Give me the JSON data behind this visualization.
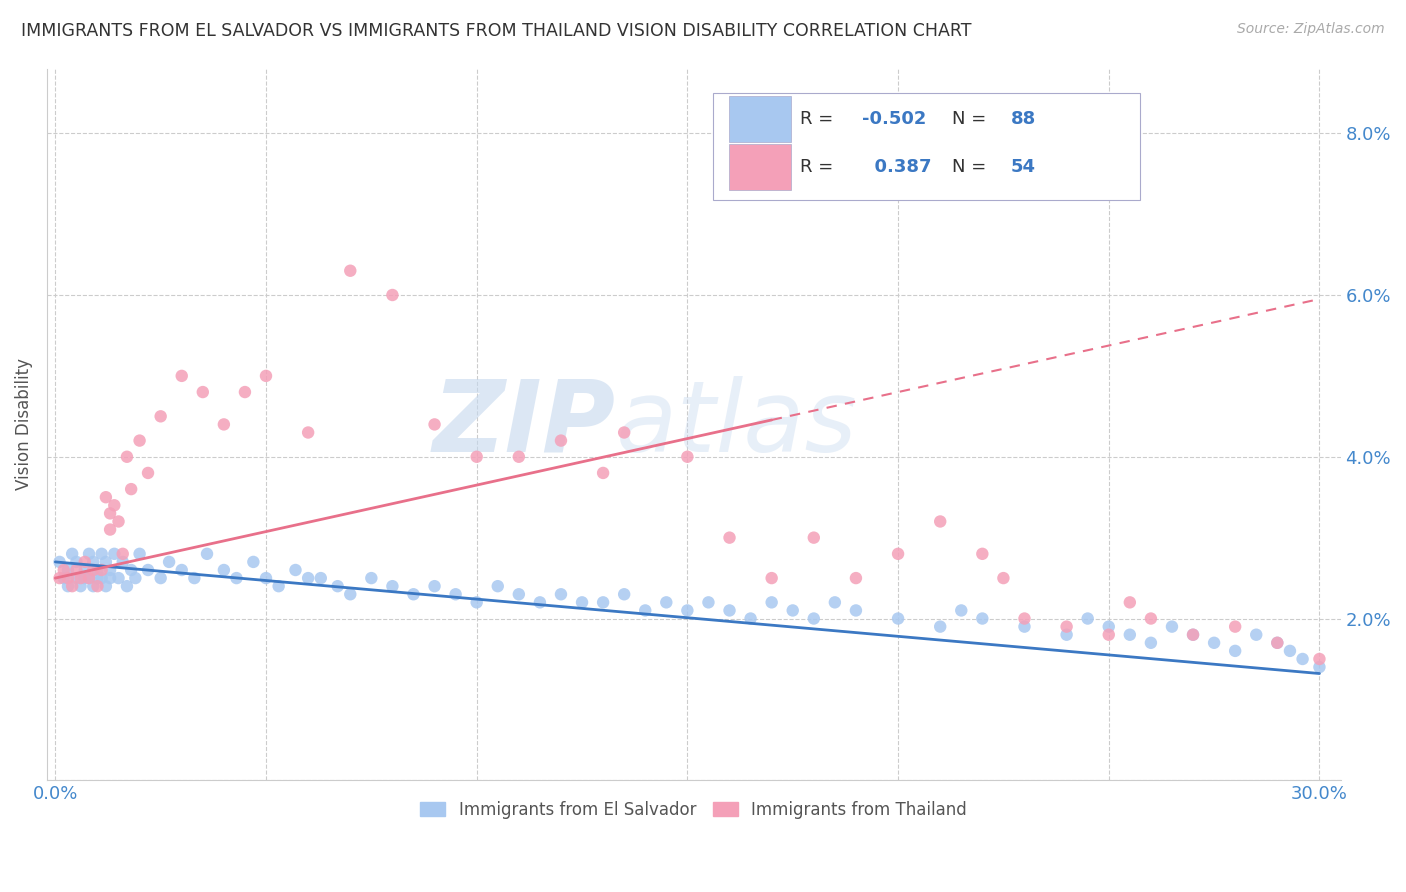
{
  "title": "IMMIGRANTS FROM EL SALVADOR VS IMMIGRANTS FROM THAILAND VISION DISABILITY CORRELATION CHART",
  "source": "Source: ZipAtlas.com",
  "ylabel": "Vision Disability",
  "x_ticks": [
    0.0,
    0.05,
    0.1,
    0.15,
    0.2,
    0.25,
    0.3
  ],
  "x_tick_labels": [
    "0.0%",
    "",
    "",
    "",
    "",
    "",
    "30.0%"
  ],
  "y_ticks": [
    0.0,
    0.02,
    0.04,
    0.06,
    0.08
  ],
  "y_tick_labels": [
    "",
    "2.0%",
    "4.0%",
    "6.0%",
    "8.0%"
  ],
  "xlim": [
    -0.002,
    0.305
  ],
  "ylim": [
    0.0,
    0.088
  ],
  "legend_labels": [
    "Immigrants from El Salvador",
    "Immigrants from Thailand"
  ],
  "el_salvador_color": "#a8c8f0",
  "thailand_color": "#f4a0b8",
  "el_salvador_line_color": "#3b78c3",
  "thailand_line_color": "#e8708a",
  "watermark_zip": "ZIP",
  "watermark_atlas": "atlas",
  "el_salvador_x": [
    0.001,
    0.002,
    0.003,
    0.003,
    0.004,
    0.005,
    0.005,
    0.006,
    0.007,
    0.007,
    0.008,
    0.008,
    0.009,
    0.009,
    0.01,
    0.01,
    0.011,
    0.011,
    0.012,
    0.012,
    0.013,
    0.013,
    0.014,
    0.015,
    0.016,
    0.017,
    0.018,
    0.019,
    0.02,
    0.022,
    0.025,
    0.027,
    0.03,
    0.033,
    0.036,
    0.04,
    0.043,
    0.047,
    0.05,
    0.053,
    0.057,
    0.06,
    0.063,
    0.067,
    0.07,
    0.075,
    0.08,
    0.085,
    0.09,
    0.095,
    0.1,
    0.105,
    0.11,
    0.115,
    0.12,
    0.125,
    0.13,
    0.135,
    0.14,
    0.145,
    0.15,
    0.155,
    0.16,
    0.165,
    0.17,
    0.175,
    0.18,
    0.185,
    0.19,
    0.2,
    0.21,
    0.215,
    0.22,
    0.23,
    0.24,
    0.245,
    0.25,
    0.255,
    0.26,
    0.265,
    0.27,
    0.275,
    0.28,
    0.285,
    0.29,
    0.293,
    0.296,
    0.3
  ],
  "el_salvador_y": [
    0.027,
    0.025,
    0.026,
    0.024,
    0.028,
    0.025,
    0.027,
    0.024,
    0.026,
    0.025,
    0.028,
    0.025,
    0.027,
    0.024,
    0.026,
    0.025,
    0.028,
    0.025,
    0.027,
    0.024,
    0.026,
    0.025,
    0.028,
    0.025,
    0.027,
    0.024,
    0.026,
    0.025,
    0.028,
    0.026,
    0.025,
    0.027,
    0.026,
    0.025,
    0.028,
    0.026,
    0.025,
    0.027,
    0.025,
    0.024,
    0.026,
    0.025,
    0.025,
    0.024,
    0.023,
    0.025,
    0.024,
    0.023,
    0.024,
    0.023,
    0.022,
    0.024,
    0.023,
    0.022,
    0.023,
    0.022,
    0.022,
    0.023,
    0.021,
    0.022,
    0.021,
    0.022,
    0.021,
    0.02,
    0.022,
    0.021,
    0.02,
    0.022,
    0.021,
    0.02,
    0.019,
    0.021,
    0.02,
    0.019,
    0.018,
    0.02,
    0.019,
    0.018,
    0.017,
    0.019,
    0.018,
    0.017,
    0.016,
    0.018,
    0.017,
    0.016,
    0.015,
    0.014
  ],
  "thailand_x": [
    0.001,
    0.002,
    0.003,
    0.004,
    0.005,
    0.006,
    0.007,
    0.008,
    0.009,
    0.01,
    0.011,
    0.012,
    0.013,
    0.013,
    0.014,
    0.015,
    0.016,
    0.017,
    0.018,
    0.02,
    0.022,
    0.025,
    0.03,
    0.035,
    0.04,
    0.045,
    0.05,
    0.06,
    0.07,
    0.08,
    0.09,
    0.1,
    0.11,
    0.12,
    0.13,
    0.135,
    0.15,
    0.16,
    0.17,
    0.18,
    0.19,
    0.2,
    0.21,
    0.22,
    0.225,
    0.23,
    0.24,
    0.25,
    0.255,
    0.26,
    0.27,
    0.28,
    0.29,
    0.3
  ],
  "thailand_y": [
    0.025,
    0.026,
    0.025,
    0.024,
    0.026,
    0.025,
    0.027,
    0.025,
    0.026,
    0.024,
    0.026,
    0.035,
    0.033,
    0.031,
    0.034,
    0.032,
    0.028,
    0.04,
    0.036,
    0.042,
    0.038,
    0.045,
    0.05,
    0.048,
    0.044,
    0.048,
    0.05,
    0.043,
    0.063,
    0.06,
    0.044,
    0.04,
    0.04,
    0.042,
    0.038,
    0.043,
    0.04,
    0.03,
    0.025,
    0.03,
    0.025,
    0.028,
    0.032,
    0.028,
    0.025,
    0.02,
    0.019,
    0.018,
    0.022,
    0.02,
    0.018,
    0.019,
    0.017,
    0.015
  ]
}
